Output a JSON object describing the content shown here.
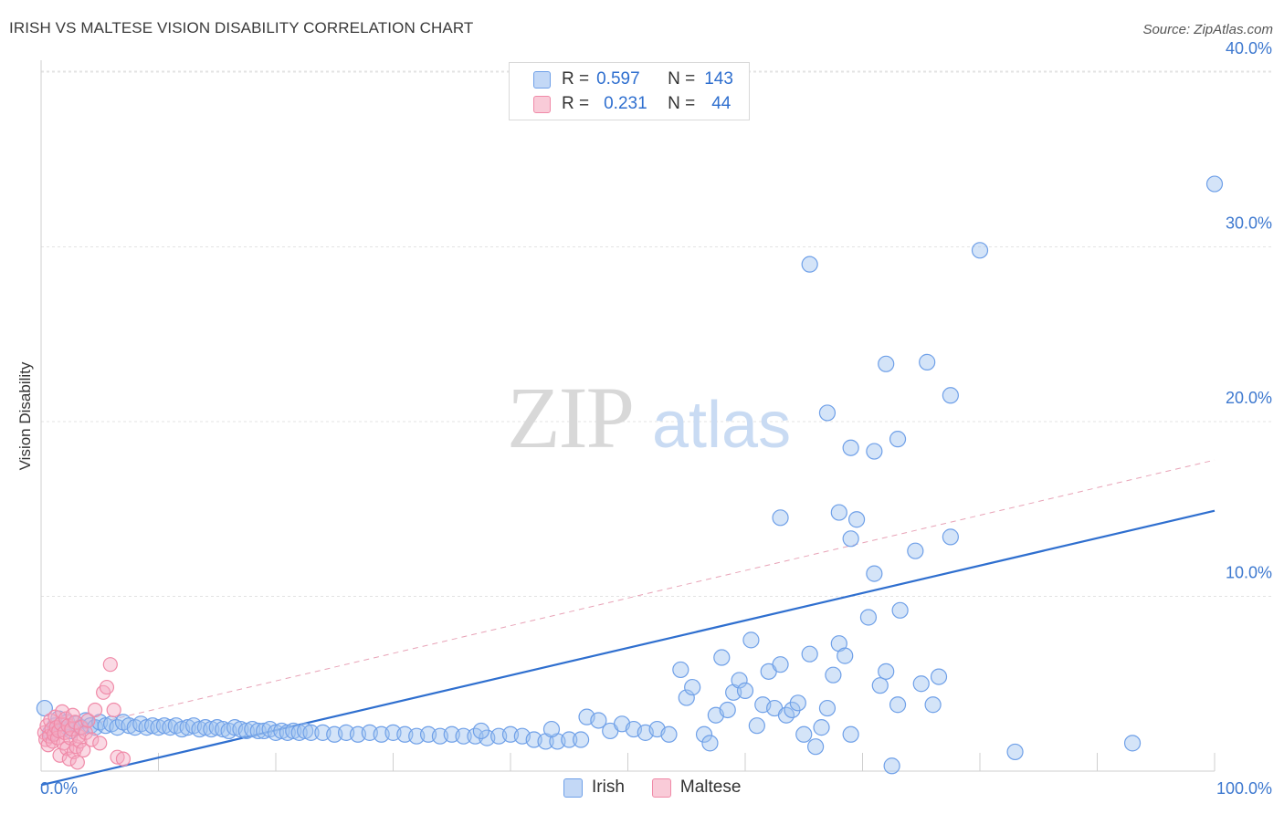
{
  "header": {
    "title": "IRISH VS MALTESE VISION DISABILITY CORRELATION CHART",
    "source": "Source: ZipAtlas.com"
  },
  "watermark": {
    "zip": "ZIP",
    "atlas": "atlas"
  },
  "legend": {
    "rows": [
      {
        "r_label": "R =",
        "r_value": "0.597",
        "n_label": "N =",
        "n_value": "143",
        "color": "#6fa0e8"
      },
      {
        "r_label": "R =",
        "r_value": "0.231",
        "n_label": "N =",
        "n_value": "44",
        "color": "#f08aa8"
      }
    ]
  },
  "bottom_legend": [
    {
      "label": "Irish",
      "color": "#6fa0e8"
    },
    {
      "label": "Maltese",
      "color": "#f08aa8"
    }
  ],
  "chart_data": {
    "type": "scatter",
    "title": "IRISH VS MALTESE VISION DISABILITY CORRELATION CHART",
    "xlabel": "",
    "ylabel": "Vision Disability",
    "xlim": [
      0,
      100
    ],
    "ylim": [
      0,
      40
    ],
    "x_tick_labels": [
      "0.0%",
      "100.0%"
    ],
    "y_ticks": [
      10,
      20,
      30,
      40
    ],
    "y_tick_labels": [
      "10.0%",
      "20.0%",
      "30.0%",
      "40.0%"
    ],
    "grid": true,
    "legend_position": "top-center",
    "series": [
      {
        "name": "Irish",
        "color": "#6fa0e8",
        "trend": {
          "style": "solid",
          "x": [
            0,
            100
          ],
          "y": [
            -0.8,
            14.9
          ]
        },
        "points": [
          [
            0.3,
            3.6
          ],
          [
            0.8,
            2.2
          ],
          [
            1.2,
            2.6
          ],
          [
            1.5,
            3.0
          ],
          [
            1.8,
            2.4
          ],
          [
            2.2,
            2.8
          ],
          [
            2.6,
            2.3
          ],
          [
            3.0,
            2.7
          ],
          [
            3.4,
            2.5
          ],
          [
            3.8,
            2.9
          ],
          [
            4.2,
            2.6
          ],
          [
            4.6,
            2.5
          ],
          [
            5.0,
            2.8
          ],
          [
            5.5,
            2.6
          ],
          [
            6.0,
            2.7
          ],
          [
            6.5,
            2.5
          ],
          [
            7.0,
            2.8
          ],
          [
            7.5,
            2.6
          ],
          [
            8.0,
            2.5
          ],
          [
            8.5,
            2.7
          ],
          [
            9.0,
            2.5
          ],
          [
            9.5,
            2.6
          ],
          [
            10.0,
            2.5
          ],
          [
            10.5,
            2.6
          ],
          [
            11.0,
            2.5
          ],
          [
            11.5,
            2.6
          ],
          [
            12.0,
            2.4
          ],
          [
            12.5,
            2.5
          ],
          [
            13.0,
            2.6
          ],
          [
            13.5,
            2.4
          ],
          [
            14.0,
            2.5
          ],
          [
            14.5,
            2.4
          ],
          [
            15.0,
            2.5
          ],
          [
            15.5,
            2.4
          ],
          [
            16.0,
            2.3
          ],
          [
            16.5,
            2.5
          ],
          [
            17.0,
            2.4
          ],
          [
            17.5,
            2.3
          ],
          [
            18.0,
            2.4
          ],
          [
            18.5,
            2.3
          ],
          [
            19.0,
            2.3
          ],
          [
            19.5,
            2.4
          ],
          [
            20.0,
            2.2
          ],
          [
            20.5,
            2.3
          ],
          [
            21.0,
            2.2
          ],
          [
            21.5,
            2.3
          ],
          [
            22.0,
            2.2
          ],
          [
            22.5,
            2.3
          ],
          [
            23.0,
            2.2
          ],
          [
            24.0,
            2.2
          ],
          [
            25.0,
            2.1
          ],
          [
            26.0,
            2.2
          ],
          [
            27.0,
            2.1
          ],
          [
            28.0,
            2.2
          ],
          [
            29.0,
            2.1
          ],
          [
            30.0,
            2.2
          ],
          [
            31.0,
            2.1
          ],
          [
            32.0,
            2.0
          ],
          [
            33.0,
            2.1
          ],
          [
            34.0,
            2.0
          ],
          [
            35.0,
            2.1
          ],
          [
            36.0,
            2.0
          ],
          [
            37.0,
            2.0
          ],
          [
            38.0,
            1.9
          ],
          [
            39.0,
            2.0
          ],
          [
            40.0,
            2.1
          ],
          [
            41.0,
            2.0
          ],
          [
            42.0,
            1.8
          ],
          [
            43.0,
            1.7
          ],
          [
            44.0,
            1.7
          ],
          [
            45.0,
            1.8
          ],
          [
            46.0,
            1.8
          ],
          [
            37.5,
            2.3
          ],
          [
            43.5,
            2.4
          ],
          [
            46.5,
            3.1
          ],
          [
            47.5,
            2.9
          ],
          [
            48.5,
            2.3
          ],
          [
            49.5,
            2.7
          ],
          [
            50.5,
            2.4
          ],
          [
            51.5,
            2.2
          ],
          [
            52.5,
            2.4
          ],
          [
            53.5,
            2.1
          ],
          [
            54.5,
            5.8
          ],
          [
            55.0,
            4.2
          ],
          [
            55.5,
            4.8
          ],
          [
            56.5,
            2.1
          ],
          [
            57.0,
            1.6
          ],
          [
            57.5,
            3.2
          ],
          [
            58.0,
            6.5
          ],
          [
            58.5,
            3.5
          ],
          [
            59.0,
            4.5
          ],
          [
            59.5,
            5.2
          ],
          [
            60.0,
            4.6
          ],
          [
            60.5,
            7.5
          ],
          [
            61.0,
            2.6
          ],
          [
            61.5,
            3.8
          ],
          [
            62.0,
            5.7
          ],
          [
            62.5,
            3.6
          ],
          [
            63.0,
            6.1
          ],
          [
            63.5,
            3.2
          ],
          [
            64.0,
            3.5
          ],
          [
            64.5,
            3.9
          ],
          [
            65.0,
            2.1
          ],
          [
            65.5,
            6.7
          ],
          [
            66.0,
            1.4
          ],
          [
            66.5,
            2.5
          ],
          [
            67.0,
            3.6
          ],
          [
            67.5,
            5.5
          ],
          [
            68.0,
            7.3
          ],
          [
            68.5,
            6.6
          ],
          [
            63.0,
            14.5
          ],
          [
            67.0,
            20.5
          ],
          [
            69.0,
            18.5
          ],
          [
            69.5,
            14.4
          ],
          [
            71.0,
            18.3
          ],
          [
            70.5,
            8.8
          ],
          [
            71.5,
            4.9
          ],
          [
            72.0,
            5.7
          ],
          [
            72.5,
            0.3
          ],
          [
            73.0,
            3.8
          ],
          [
            76.0,
            3.8
          ],
          [
            65.5,
            29.0
          ],
          [
            68.0,
            14.8
          ],
          [
            69.0,
            13.3
          ],
          [
            71.0,
            11.3
          ],
          [
            73.0,
            19.0
          ],
          [
            73.2,
            9.2
          ],
          [
            72.0,
            23.3
          ],
          [
            75.5,
            23.4
          ],
          [
            77.5,
            21.5
          ],
          [
            74.5,
            12.6
          ],
          [
            75.0,
            5.0
          ],
          [
            76.5,
            5.4
          ],
          [
            77.5,
            13.4
          ],
          [
            80.0,
            29.8
          ],
          [
            83.0,
            1.1
          ],
          [
            93.0,
            1.6
          ],
          [
            100.0,
            33.6
          ],
          [
            69.0,
            2.1
          ]
        ]
      },
      {
        "name": "Maltese",
        "color": "#f08aa8",
        "trend": {
          "style": "dashed",
          "x": [
            0,
            100
          ],
          "y": [
            2.0,
            17.8
          ]
        },
        "points": [
          [
            0.3,
            2.2
          ],
          [
            0.4,
            1.8
          ],
          [
            0.5,
            2.6
          ],
          [
            0.6,
            1.5
          ],
          [
            0.7,
            2.0
          ],
          [
            0.8,
            2.9
          ],
          [
            0.9,
            2.4
          ],
          [
            1.0,
            1.7
          ],
          [
            1.1,
            2.1
          ],
          [
            1.2,
            3.1
          ],
          [
            1.3,
            2.5
          ],
          [
            1.4,
            1.9
          ],
          [
            1.5,
            2.3
          ],
          [
            1.6,
            0.9
          ],
          [
            1.7,
            2.7
          ],
          [
            1.8,
            3.4
          ],
          [
            1.9,
            1.6
          ],
          [
            2.0,
            2.2
          ],
          [
            2.1,
            3.0
          ],
          [
            2.2,
            1.3
          ],
          [
            2.3,
            2.6
          ],
          [
            2.4,
            0.7
          ],
          [
            2.5,
            1.9
          ],
          [
            2.6,
            2.4
          ],
          [
            2.7,
            3.2
          ],
          [
            2.8,
            1.1
          ],
          [
            2.9,
            2.8
          ],
          [
            3.0,
            1.4
          ],
          [
            3.1,
            0.5
          ],
          [
            3.2,
            2.0
          ],
          [
            3.3,
            1.7
          ],
          [
            3.4,
            2.5
          ],
          [
            3.6,
            1.2
          ],
          [
            3.8,
            2.2
          ],
          [
            4.0,
            2.9
          ],
          [
            4.3,
            1.8
          ],
          [
            4.6,
            3.5
          ],
          [
            5.0,
            1.6
          ],
          [
            5.3,
            4.5
          ],
          [
            5.6,
            4.8
          ],
          [
            5.9,
            6.1
          ],
          [
            6.2,
            3.5
          ],
          [
            6.5,
            0.8
          ],
          [
            7.0,
            0.7
          ]
        ]
      }
    ]
  }
}
